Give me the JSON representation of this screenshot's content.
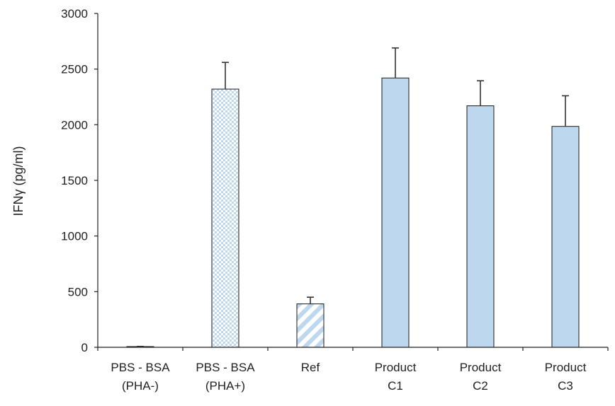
{
  "chart_data": {
    "type": "bar",
    "title": "",
    "xlabel": "",
    "ylabel": "IFNγ (pg/ml)",
    "ylim": [
      0,
      3000
    ],
    "yticks": [
      0,
      500,
      1000,
      1500,
      2000,
      2500,
      3000
    ],
    "grid": false,
    "legend": "none",
    "categories": [
      [
        "PBS - BSA",
        "(PHA-)"
      ],
      [
        "PBS - BSA",
        "(PHA+)"
      ],
      [
        "Ref"
      ],
      [
        "Product",
        "C1"
      ],
      [
        "Product",
        "C2"
      ],
      [
        "Product",
        "C3"
      ]
    ],
    "values": [
      5,
      2320,
      390,
      2420,
      2170,
      1985
    ],
    "errors": [
      3,
      240,
      60,
      270,
      225,
      275
    ],
    "fills": [
      "solid-light-blue",
      "checker-light-blue",
      "diagonal-stripe-light-blue",
      "solid-light-blue",
      "solid-light-blue",
      "solid-light-blue"
    ],
    "colors": {
      "bar_fill": "#bdd7ee",
      "bar_stroke": "#1a1a1a",
      "pattern_fill": "#bdd7ee",
      "axis": "#222222"
    }
  }
}
